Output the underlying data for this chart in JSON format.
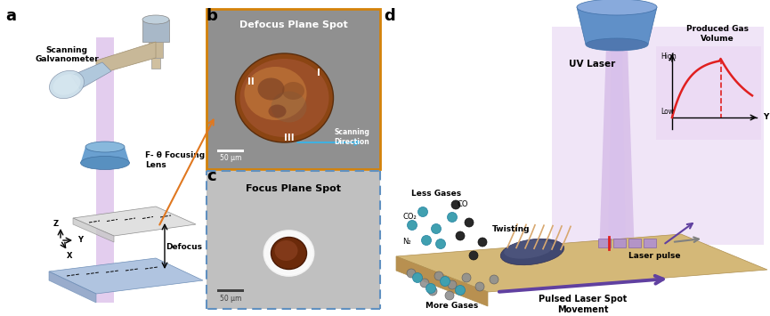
{
  "fig_width": 8.65,
  "fig_height": 3.55,
  "bg_color": "#ffffff",
  "panel_labels": [
    "a",
    "b",
    "c",
    "d"
  ],
  "panel_label_fontsize": 14,
  "panel_label_weight": "bold",
  "panel_a": {
    "labels": {
      "scanning_galvanometer": "Scanning\nGalvanometer",
      "f_theta": "F- θ Focusing\nLens",
      "defocus": "Defocus"
    },
    "colors": {
      "laser_beam": "#d4b8e0",
      "lens_body": "#7bafd4",
      "stage_top": "#e8e8e8",
      "stage_bottom": "#b0c4de",
      "beam_purple": "#c8a8d8",
      "orange_arrow": "#e07820"
    }
  },
  "panel_b": {
    "title": "Defocus Plane Spot",
    "border_color": "#d4820a",
    "bg_microscopy": "#808080",
    "labels": {
      "scale": "50 μm",
      "scanning_dir": "Scanning\nDirection",
      "region_I": "I",
      "region_II": "II",
      "region_III": "III"
    },
    "arrow_color": "#4ab0e0"
  },
  "panel_c": {
    "title": "Focus Plane Spot",
    "border_color": "#6090c0",
    "bg_microscopy": "#c0c0c0",
    "labels": {
      "scale": "50 μm"
    }
  },
  "panel_d": {
    "labels": {
      "uv_laser": "UV Laser",
      "produced_gas": "Produced Gas\nVolume",
      "high": "High",
      "low": "Low",
      "y_axis": "Y",
      "laser_pulse": "Laser pulse",
      "pulsed_movement": "Pulsed Laser Spot\nMovement",
      "twisting": "Twisting",
      "less_gases": "Less Gases",
      "more_gases": "More Gases",
      "co": "CO",
      "co2": "CO₂",
      "n2": "N₂"
    },
    "colors": {
      "lens_blue": "#6090c8",
      "graph_bg": "#e8d8f0",
      "curve_red": "#e02020",
      "arrow_purple": "#7050a0",
      "stage_tan": "#d4b878",
      "gas_teal": "#40a0b0",
      "gas_dark": "#303030",
      "gas_gray": "#909090"
    }
  }
}
